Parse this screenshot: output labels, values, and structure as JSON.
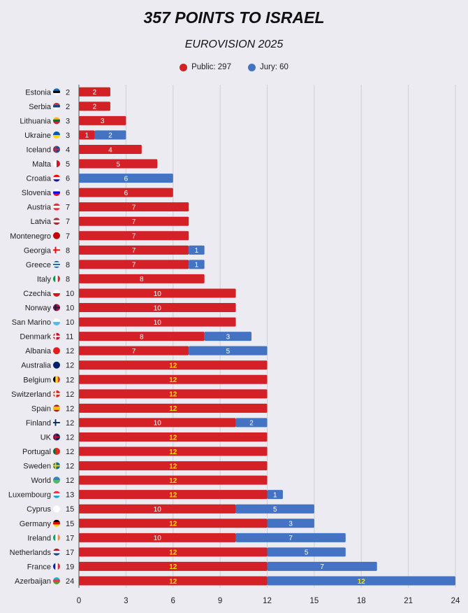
{
  "chart_data": {
    "type": "bar",
    "orientation": "horizontal",
    "stacked": true,
    "title": "357 POINTS TO ISRAEL",
    "subtitle": "EUROVISION 2025",
    "legend_position": "top",
    "grid": true,
    "xlim": [
      0,
      24
    ],
    "xticks": [
      0,
      3,
      6,
      9,
      12,
      15,
      18,
      21,
      24
    ],
    "series": [
      {
        "name": "Public: 297",
        "color": "#d42027"
      },
      {
        "name": "Jury: 60",
        "color": "#4473c4"
      }
    ],
    "rows": [
      {
        "country": "Estonia",
        "flag": "flag-estonia",
        "total": 2,
        "public": 2,
        "jury": 0
      },
      {
        "country": "Serbia",
        "flag": "flag-serbia",
        "total": 2,
        "public": 2,
        "jury": 0
      },
      {
        "country": "Lithuania",
        "flag": "flag-lithuania",
        "total": 3,
        "public": 3,
        "jury": 0
      },
      {
        "country": "Ukraine",
        "flag": "flag-ukraine",
        "total": 3,
        "public": 1,
        "jury": 2
      },
      {
        "country": "Iceland",
        "flag": "flag-iceland",
        "total": 4,
        "public": 4,
        "jury": 0
      },
      {
        "country": "Malta",
        "flag": "flag-malta",
        "total": 5,
        "public": 5,
        "jury": 0
      },
      {
        "country": "Croatia",
        "flag": "flag-croatia",
        "total": 6,
        "public": 0,
        "jury": 6
      },
      {
        "country": "Slovenia",
        "flag": "flag-slovenia",
        "total": 6,
        "public": 6,
        "jury": 0
      },
      {
        "country": "Austria",
        "flag": "flag-austria",
        "total": 7,
        "public": 7,
        "jury": 0
      },
      {
        "country": "Latvia",
        "flag": "flag-latvia",
        "total": 7,
        "public": 7,
        "jury": 0
      },
      {
        "country": "Montenegro",
        "flag": "flag-montenegro",
        "total": 7,
        "public": 7,
        "jury": 0
      },
      {
        "country": "Georgia",
        "flag": "flag-georgia",
        "total": 8,
        "public": 7,
        "jury": 1
      },
      {
        "country": "Greece",
        "flag": "flag-greece",
        "total": 8,
        "public": 7,
        "jury": 1
      },
      {
        "country": "Italy",
        "flag": "flag-italy",
        "total": 8,
        "public": 8,
        "jury": 0
      },
      {
        "country": "Czechia",
        "flag": "flag-czechia",
        "total": 10,
        "public": 10,
        "jury": 0
      },
      {
        "country": "Norway",
        "flag": "flag-norway",
        "total": 10,
        "public": 10,
        "jury": 0
      },
      {
        "country": "San Marino",
        "flag": "flag-san-marino",
        "total": 10,
        "public": 10,
        "jury": 0
      },
      {
        "country": "Denmark",
        "flag": "flag-denmark",
        "total": 11,
        "public": 8,
        "jury": 3
      },
      {
        "country": "Albania",
        "flag": "flag-albania",
        "total": 12,
        "public": 7,
        "jury": 5
      },
      {
        "country": "Australia",
        "flag": "flag-australia",
        "total": 12,
        "public": 12,
        "jury": 0
      },
      {
        "country": "Belgium",
        "flag": "flag-belgium",
        "total": 12,
        "public": 12,
        "jury": 0
      },
      {
        "country": "Switzerland",
        "flag": "flag-switzerland",
        "total": 12,
        "public": 12,
        "jury": 0
      },
      {
        "country": "Spain",
        "flag": "flag-spain",
        "total": 12,
        "public": 12,
        "jury": 0
      },
      {
        "country": "Finland",
        "flag": "flag-finland",
        "total": 12,
        "public": 10,
        "jury": 2
      },
      {
        "country": "UK",
        "flag": "flag-uk",
        "total": 12,
        "public": 12,
        "jury": 0
      },
      {
        "country": "Portugal",
        "flag": "flag-portugal",
        "total": 12,
        "public": 12,
        "jury": 0
      },
      {
        "country": "Sweden",
        "flag": "flag-sweden",
        "total": 12,
        "public": 12,
        "jury": 0
      },
      {
        "country": "World",
        "flag": "flag-world",
        "total": 12,
        "public": 12,
        "jury": 0
      },
      {
        "country": "Luxembourg",
        "flag": "flag-luxembourg",
        "total": 13,
        "public": 12,
        "jury": 1
      },
      {
        "country": "Cyprus",
        "flag": "flag-cyprus",
        "total": 15,
        "public": 10,
        "jury": 5
      },
      {
        "country": "Germany",
        "flag": "flag-germany",
        "total": 15,
        "public": 12,
        "jury": 3
      },
      {
        "country": "Ireland",
        "flag": "flag-ireland",
        "total": 17,
        "public": 10,
        "jury": 7
      },
      {
        "country": "Netherlands",
        "flag": "flag-netherlands",
        "total": 17,
        "public": 12,
        "jury": 5
      },
      {
        "country": "France",
        "flag": "flag-france",
        "total": 19,
        "public": 12,
        "jury": 7
      },
      {
        "country": "Azerbaijan",
        "flag": "flag-azerbaijan",
        "total": 24,
        "public": 12,
        "jury": 12
      }
    ],
    "highlight": {
      "value": 12,
      "label_color": "#ffe600",
      "default_label_color": "#ffffff"
    }
  }
}
